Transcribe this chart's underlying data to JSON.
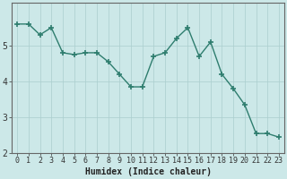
{
  "x": [
    0,
    1,
    2,
    3,
    4,
    5,
    6,
    7,
    8,
    9,
    10,
    11,
    12,
    13,
    14,
    15,
    16,
    17,
    18,
    19,
    20,
    21,
    22,
    23
  ],
  "y": [
    5.6,
    5.6,
    5.3,
    5.5,
    4.8,
    4.75,
    4.8,
    4.8,
    4.55,
    4.2,
    3.85,
    3.85,
    4.7,
    4.8,
    5.2,
    5.5,
    4.7,
    5.1,
    4.2,
    3.8,
    3.35,
    2.55,
    2.55,
    2.45
  ],
  "line_color": "#2e7d6e",
  "marker_color": "#2e7d6e",
  "bg_color": "#cce8e8",
  "grid_color": "#aacece",
  "xlabel": "Humidex (Indice chaleur)",
  "ylim": [
    2.0,
    6.2
  ],
  "xlim": [
    -0.5,
    23.5
  ],
  "yticks": [
    2,
    3,
    4,
    5
  ],
  "xticks": [
    0,
    1,
    2,
    3,
    4,
    5,
    6,
    7,
    8,
    9,
    10,
    11,
    12,
    13,
    14,
    15,
    16,
    17,
    18,
    19,
    20,
    21,
    22,
    23
  ],
  "xlabel_fontsize": 7,
  "tick_fontsize": 6,
  "line_width": 1.0,
  "marker_size": 4,
  "marker_style": "+"
}
